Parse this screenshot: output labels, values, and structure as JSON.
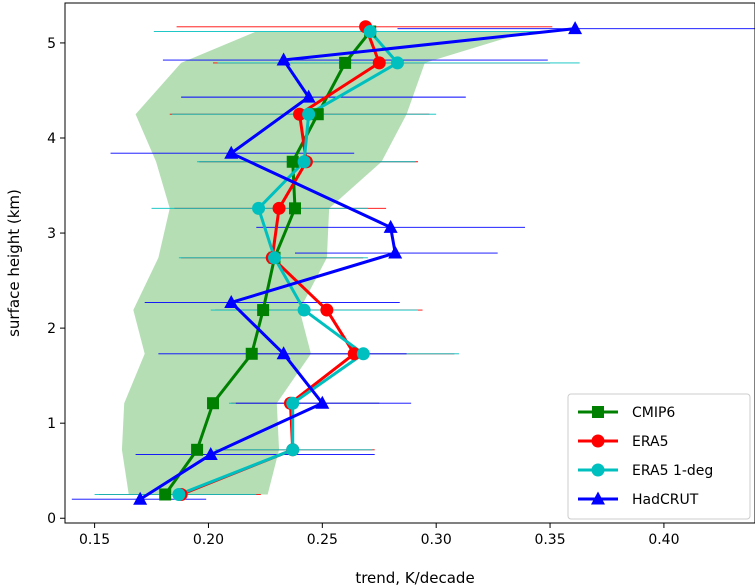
{
  "chart_data": {
    "type": "line",
    "title": "",
    "xlabel": "trend, K/decade",
    "ylabel": "surface height (km)",
    "xlim": [
      0.137,
      0.44
    ],
    "ylim": [
      -0.05,
      5.42
    ],
    "xticks": [
      0.15,
      0.2,
      0.25,
      0.3,
      0.35,
      0.4
    ],
    "xtick_labels": [
      "0.15",
      "0.20",
      "0.25",
      "0.30",
      "0.35",
      "0.40"
    ],
    "yticks": [
      0,
      1,
      2,
      3,
      4,
      5
    ],
    "ytick_labels": [
      "0",
      "1",
      "2",
      "3",
      "4",
      "5"
    ],
    "grid": false,
    "legend_position": "bottom-right",
    "shaded_band": {
      "name": "CMIP6 spread",
      "color": "#2ca02c",
      "opacity": 0.35,
      "y": [
        0.25,
        0.72,
        1.21,
        1.73,
        2.19,
        2.74,
        3.26,
        3.75,
        4.25,
        4.79,
        5.12
      ],
      "low": [
        0.165,
        0.162,
        0.163,
        0.172,
        0.167,
        0.178,
        0.183,
        0.177,
        0.168,
        0.188,
        0.221
      ],
      "high": [
        0.226,
        0.231,
        0.23,
        0.245,
        0.24,
        0.252,
        0.253,
        0.276,
        0.287,
        0.295,
        0.34
      ]
    },
    "series": [
      {
        "name": "CMIP6",
        "color": "#008000",
        "marker": "square",
        "x": [
          0.181,
          0.195,
          0.202,
          0.219,
          0.224,
          0.229,
          0.238,
          0.237,
          0.248,
          0.26,
          0.271
        ],
        "y": [
          0.25,
          0.72,
          1.21,
          1.73,
          2.19,
          2.74,
          3.26,
          3.75,
          4.25,
          4.79,
          5.12
        ],
        "err_low": [],
        "err_high": []
      },
      {
        "name": "ERA5",
        "color": "#ff0000",
        "marker": "circle",
        "x": [
          0.188,
          0.237,
          0.236,
          0.264,
          0.252,
          0.228,
          0.231,
          0.243,
          0.24,
          0.275,
          0.269
        ],
        "y": [
          0.25,
          0.72,
          1.21,
          1.73,
          2.19,
          2.74,
          3.26,
          3.75,
          4.25,
          4.79,
          5.17
        ],
        "err_low": [
          0.152,
          0.205,
          0.21,
          0.218,
          0.203,
          0.188,
          0.185,
          0.196,
          0.183,
          0.202,
          0.186
        ],
        "err_high": [
          0.223,
          0.273,
          0.275,
          0.308,
          0.294,
          0.268,
          0.278,
          0.292,
          0.297,
          0.35,
          0.351
        ]
      },
      {
        "name": "ERA5 1-deg",
        "color": "#00bfbf",
        "marker": "circle",
        "x": [
          0.187,
          0.237,
          0.237,
          0.268,
          0.242,
          0.229,
          0.222,
          0.242,
          0.244,
          0.283,
          0.271
        ],
        "y": [
          0.25,
          0.72,
          1.21,
          1.73,
          2.19,
          2.74,
          3.26,
          3.75,
          4.25,
          4.79,
          5.12
        ],
        "err_low": [
          0.15,
          0.203,
          0.209,
          0.22,
          0.201,
          0.187,
          0.175,
          0.195,
          0.184,
          0.204,
          0.176
        ],
        "err_high": [
          0.221,
          0.272,
          0.275,
          0.31,
          0.292,
          0.27,
          0.27,
          0.291,
          0.3,
          0.363,
          0.345
        ]
      },
      {
        "name": "HadCRUT",
        "color": "#0000ff",
        "marker": "triangle",
        "x": [
          0.17,
          0.201,
          0.25,
          0.233,
          0.21,
          0.282,
          0.28,
          0.21,
          0.244,
          0.233,
          0.361
        ],
        "y": [
          0.2,
          0.67,
          1.21,
          1.73,
          2.27,
          2.79,
          3.06,
          3.84,
          4.43,
          4.82,
          5.15
        ],
        "err_low": [
          0.14,
          0.168,
          0.212,
          0.178,
          0.172,
          0.238,
          0.221,
          0.157,
          0.188,
          0.18,
          0.283
        ],
        "err_high": [
          0.199,
          0.273,
          0.289,
          0.287,
          0.284,
          0.327,
          0.339,
          0.264,
          0.313,
          0.349,
          0.448
        ]
      }
    ]
  }
}
